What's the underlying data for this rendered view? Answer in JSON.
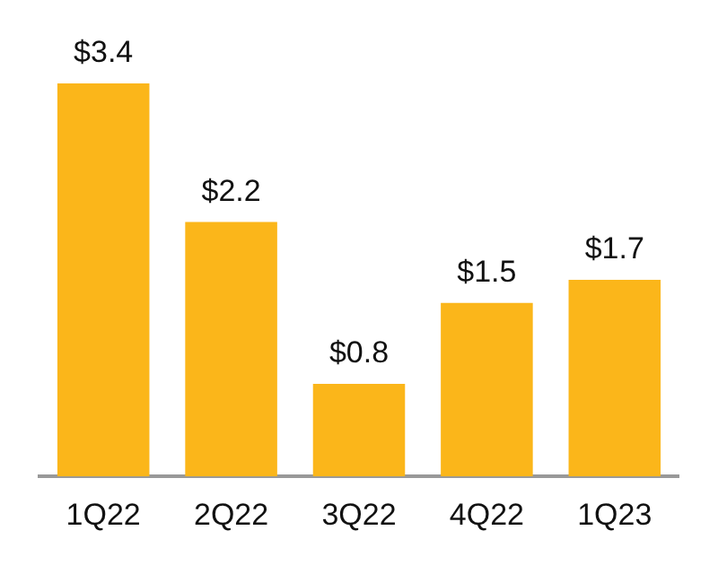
{
  "chart_data": {
    "type": "bar",
    "categories": [
      "1Q22",
      "2Q22",
      "3Q22",
      "4Q22",
      "1Q23"
    ],
    "values": [
      3.4,
      2.2,
      0.8,
      1.5,
      1.7
    ],
    "color": "#fbb61a",
    "value_labels": [
      "$3.4",
      "$2.2",
      "$0.8",
      "$1.5",
      "$1.7"
    ],
    "grid": false,
    "legend": false
  }
}
